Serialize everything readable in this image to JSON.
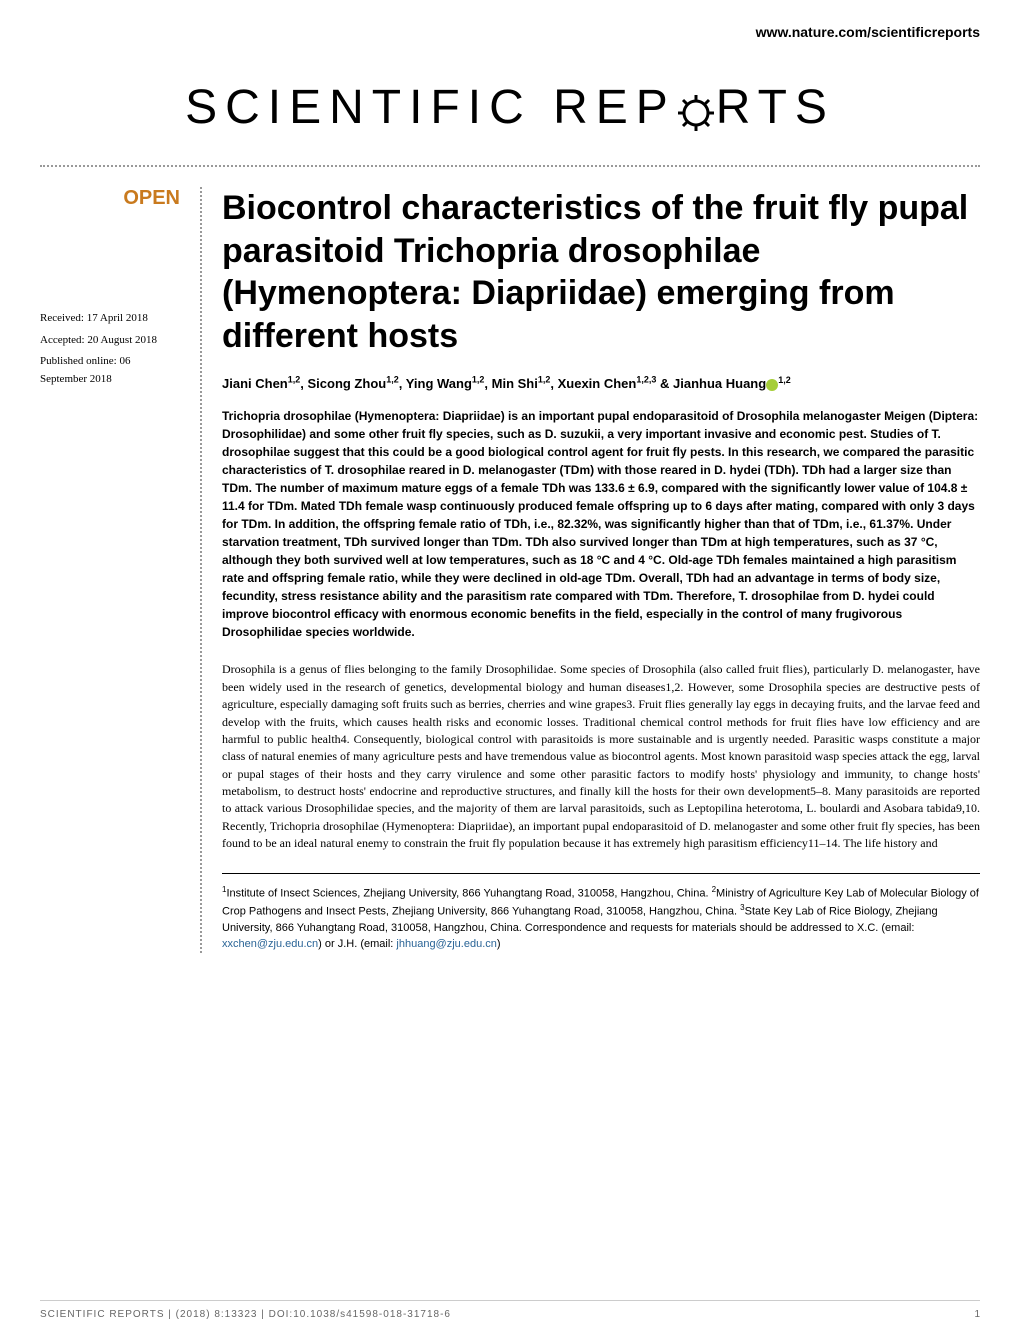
{
  "header": {
    "link": "www.nature.com/scientificreports"
  },
  "journal": {
    "name_part1": "SCIENTIFIC ",
    "name_part2": "REP",
    "name_part3": "RTS"
  },
  "badges": {
    "open": "OPEN"
  },
  "dates": {
    "received": "Received: 17 April 2018",
    "accepted": "Accepted: 20 August 2018",
    "published": "Published online: 06 September 2018"
  },
  "article": {
    "title": "Biocontrol characteristics of the fruit fly pupal parasitoid Trichopria drosophilae (Hymenoptera: Diapriidae) emerging from different hosts",
    "authors_html": "Jiani Chen<sup>1,2</sup>, Sicong Zhou<sup>1,2</sup>, Ying Wang<sup>1,2</sup>, Min Shi<sup>1,2</sup>, Xuexin Chen<sup>1,2,3</sup> & Jianhua Huang",
    "authors_last_sup": "1,2",
    "abstract": "Trichopria drosophilae (Hymenoptera: Diapriidae) is an important pupal endoparasitoid of Drosophila melanogaster Meigen (Diptera: Drosophilidae) and some other fruit fly species, such as D. suzukii, a very important invasive and economic pest. Studies of T. drosophilae suggest that this could be a good biological control agent for fruit fly pests. In this research, we compared the parasitic characteristics of T. drosophilae reared in D. melanogaster (TDm) with those reared in D. hydei (TDh). TDh had a larger size than TDm. The number of maximum mature eggs of a female TDh was 133.6 ± 6.9, compared with the significantly lower value of 104.8 ± 11.4 for TDm. Mated TDh female wasp continuously produced female offspring up to 6 days after mating, compared with only 3 days for TDm. In addition, the offspring female ratio of TDh, i.e., 82.32%, was significantly higher than that of TDm, i.e., 61.37%. Under starvation treatment, TDh survived longer than TDm. TDh also survived longer than TDm at high temperatures, such as 37 °C, although they both survived well at low temperatures, such as 18 °C and 4 °C. Old-age TDh females maintained a high parasitism rate and offspring female ratio, while they were declined in old-age TDm. Overall, TDh had an advantage in terms of body size, fecundity, stress resistance ability and the parasitism rate compared with TDm. Therefore, T. drosophilae from D. hydei could improve biocontrol efficacy with enormous economic benefits in the field, especially in the control of many frugivorous Drosophilidae species worldwide.",
    "body": "Drosophila is a genus of flies belonging to the family Drosophilidae. Some species of Drosophila (also called fruit flies), particularly D. melanogaster, have been widely used in the research of genetics, developmental biology and human diseases1,2. However, some Drosophila species are destructive pests of agriculture, especially damaging soft fruits such as berries, cherries and wine grapes3. Fruit flies generally lay eggs in decaying fruits, and the larvae feed and develop with the fruits, which causes health risks and economic losses. Traditional chemical control methods for fruit flies have low efficiency and are harmful to public health4. Consequently, biological control with parasitoids is more sustainable and is urgently needed. Parasitic wasps constitute a major class of natural enemies of many agriculture pests and have tremendous value as biocontrol agents. Most known parasitoid wasp species attack the egg, larval or pupal stages of their hosts and they carry virulence and some other parasitic factors to modify hosts' physiology and immunity, to change hosts' metabolism, to destruct hosts' endocrine and reproductive structures, and finally kill the hosts for their own development5–8. Many parasitoids are reported to attack various Drosophilidae species, and the majority of them are larval parasitoids, such as Leptopilina heterotoma, L. boulardi and Asobara tabida9,10. Recently, Trichopria drosophilae (Hymenoptera: Diapriidae), an important pupal endoparasitoid of D. melanogaster and some other fruit fly species, has been found to be an ideal natural enemy to constrain the fruit fly population because it has extremely high parasitism efficiency11–14. The life history and",
    "affiliations_html": "<sup>1</sup>Institute of Insect Sciences, Zhejiang University, 866 Yuhangtang Road, 310058, Hangzhou, China. <sup>2</sup>Ministry of Agriculture Key Lab of Molecular Biology of Crop Pathogens and Insect Pests, Zhejiang University, 866 Yuhangtang Road, 310058, Hangzhou, China. <sup>3</sup>State Key Lab of Rice Biology, Zhejiang University, 866 Yuhangtang Road, 310058, Hangzhou, China. Correspondence and requests for materials should be addressed to X.C. (email: <a>xxchen@zju.edu.cn</a>) or J.H. (email: <a>jhhuang@zju.edu.cn</a>)"
  },
  "footer": {
    "citation": "SCIENTIFIC REPORTS | (2018) 8:13323 | DOI:10.1038/s41598-018-31718-6",
    "page": "1"
  },
  "colors": {
    "open_badge": "#c97a1e",
    "link": "#2a6496",
    "orcid": "#a6ce39",
    "dotted": "#999999"
  }
}
